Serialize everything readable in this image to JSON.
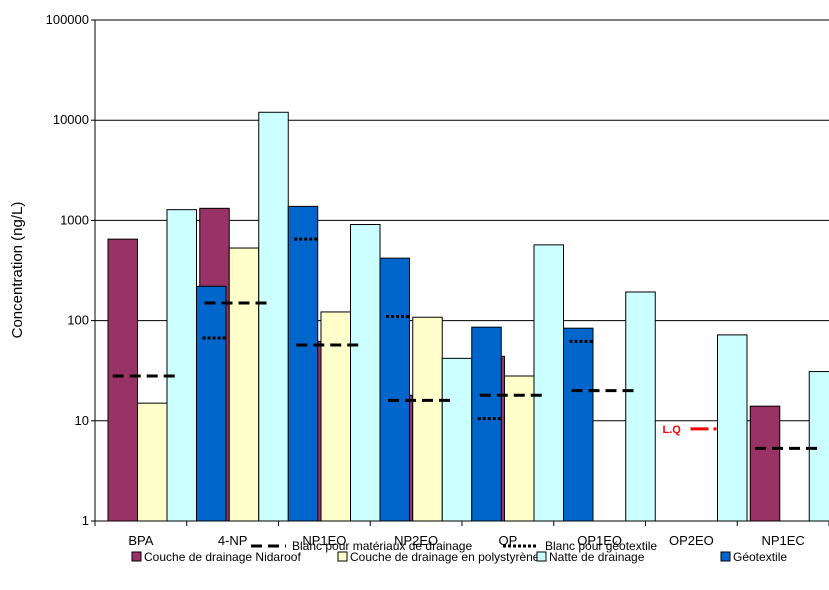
{
  "chart_data": {
    "type": "bar",
    "ylabel": "Concentration (ng/L)",
    "xlabel": "",
    "yscale": "log",
    "ylim": [
      1,
      100000
    ],
    "yticks": [
      "1",
      "10",
      "100",
      "1000",
      "10000",
      "100000"
    ],
    "grid": true,
    "legend_position": "bottom",
    "categories": [
      "BPA",
      "4-NP",
      "NP1EO",
      "NP2EO",
      "OP",
      "OP1EO",
      "OP2EO",
      "NP1EC"
    ],
    "series": [
      {
        "name": "Couche de drainage Nidaroof",
        "color": "#993366",
        "values": [
          650,
          1320,
          62,
          18,
          44,
          null,
          null,
          14
        ]
      },
      {
        "name": "Couche de drainage en polystyrène",
        "color": "#FFFFCC",
        "values": [
          15,
          530,
          122,
          108,
          28,
          null,
          null,
          null
        ]
      },
      {
        "name": "Natte de drainage",
        "color": "#CCFFFF",
        "values": [
          1280,
          12000,
          910,
          42,
          570,
          193,
          72,
          31
        ]
      },
      {
        "name": "Géotextile",
        "color": "#0066CC",
        "values": [
          220,
          1380,
          420,
          86,
          84,
          null,
          null,
          null
        ]
      }
    ],
    "blanks": [
      {
        "name": "Blanc pour matériaux de drainage",
        "style": "dashed",
        "values": [
          28,
          150,
          57,
          16,
          18,
          20,
          null,
          5.3
        ]
      },
      {
        "name": "Blanc pour géotextile",
        "style": "dotted",
        "values": [
          67,
          650,
          110,
          10.5,
          62,
          null,
          null,
          null
        ]
      }
    ],
    "annotations": [
      {
        "text": "L.Q",
        "category": "OP2EO",
        "value": 8.3,
        "color": "#FF0000"
      }
    ]
  }
}
